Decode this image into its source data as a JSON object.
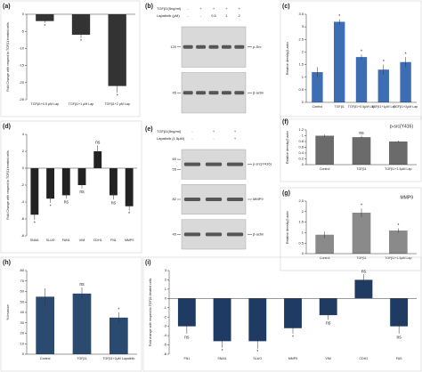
{
  "chart_data": [
    {
      "type": "bar",
      "label": "(a)",
      "y_label": "Fold Change with respect to TGFβ1 treated cells",
      "categories": [
        "TGFβ1+0.5 μM Lap",
        "TGFβ1+1 μM Lap",
        "TGFβ1+2 μM Lap"
      ],
      "values": [
        -2,
        -6,
        -21
      ],
      "errors": [
        0.5,
        1,
        2
      ],
      "annotations": [
        "*",
        "*",
        "*"
      ],
      "color": "#333333",
      "ylim": [
        -25,
        0
      ],
      "yticks": [
        0,
        -5,
        -10,
        -15,
        -20,
        -25
      ]
    },
    {
      "type": "blot",
      "label": "(b)",
      "rows": [
        {
          "name": "TGFβ1(5ng/ml)",
          "marks": [
            "-",
            "+",
            "+",
            "+",
            "+"
          ]
        },
        {
          "name": "Lapatinib (μM)",
          "marks": [
            "-",
            "-",
            "0.5",
            "1",
            "2"
          ]
        }
      ],
      "bands": [
        {
          "sizes": [
            "120"
          ],
          "name": "p-Src"
        },
        {
          "sizes": [
            "45"
          ],
          "name": "β-actin"
        }
      ]
    },
    {
      "type": "bar",
      "label": "(c)",
      "y_label": "Relative density/β-actin",
      "categories": [
        "Control",
        "TGFβ1",
        "TGFβ1+0.5μM Lap",
        "TGFβ1+1μM Lap",
        "TGFβ1+2μM Lap"
      ],
      "values": [
        1.2,
        3.2,
        1.8,
        1.3,
        1.6
      ],
      "errors": [
        0.2,
        0.1,
        0.1,
        0.2,
        0.2
      ],
      "annotations": [
        null,
        "*",
        "*",
        "*",
        "*"
      ],
      "color": "#3d6eb4",
      "ylim": [
        0,
        3.5
      ],
      "yticks": [
        0,
        0.5,
        1,
        1.5,
        2,
        2.5,
        3,
        3.5
      ]
    },
    {
      "type": "bar",
      "label": "(d)",
      "y_label": "Fold Change with respect to TGFβ1 treated cells",
      "categories": [
        "SNAIL",
        "SLUG",
        "FAN1",
        "VIM",
        "CDH1",
        "FN1",
        "MMP9"
      ],
      "values": [
        -5.5,
        -3.6,
        -3.2,
        -2,
        2,
        -3.2,
        -4.5
      ],
      "errors": [
        0.6,
        0.5,
        0.4,
        0.4,
        0.7,
        0.5,
        0.5
      ],
      "annotations": [
        "*",
        "*",
        "ns",
        "ns",
        "ns",
        "ns",
        "*"
      ],
      "color": "#222222",
      "ylim": [
        -8,
        4
      ],
      "yticks": [
        4,
        2,
        0,
        -2,
        -4,
        -6,
        -8
      ]
    },
    {
      "type": "blot",
      "label": "(e)",
      "rows": [
        {
          "name": "TGFβ1(5ng/ml)",
          "marks": [
            "-",
            "+",
            "+"
          ]
        },
        {
          "name": "Lapatinib (1.5μM)",
          "marks": [
            "-",
            "-",
            "+"
          ]
        }
      ],
      "bands": [
        {
          "sizes": [
            "60",
            "55"
          ],
          "name": "p-src(Y416)"
        },
        {
          "sizes": [
            "82"
          ],
          "name": "MMP9"
        },
        {
          "sizes": [
            "45"
          ],
          "name": "β-actin"
        }
      ]
    },
    {
      "type": "bar",
      "label": "(f)",
      "title": "p-src(Y416)",
      "y_label": "Relative density/β actin",
      "categories": [
        "Control",
        "TGFβ1",
        "TGFβ1+1.5μM Lap"
      ],
      "values": [
        1.0,
        0.95,
        0.8
      ],
      "errors": [
        0.04,
        0.05,
        0.03
      ],
      "annotations": [
        null,
        "ns",
        null
      ],
      "color": "#6b6b6b",
      "ylim": [
        0,
        1.2
      ],
      "yticks": [
        0,
        0.2,
        0.4,
        0.6,
        0.8,
        1,
        1.2
      ]
    },
    {
      "type": "bar",
      "label": "(g)",
      "title": "MMP9",
      "y_label": "Relative density/β actin",
      "categories": [
        "Control",
        "TGFβ1",
        "TGFβ1+1.5μM Lap"
      ],
      "values": [
        0.9,
        1.95,
        1.1
      ],
      "errors": [
        0.15,
        0.2,
        0.1
      ],
      "annotations": [
        null,
        "*",
        "*"
      ],
      "color": "#8a8a8a",
      "ylim": [
        0,
        2.5
      ],
      "yticks": [
        0,
        0.5,
        1,
        1.5,
        2,
        2.5
      ]
    },
    {
      "type": "bar",
      "label": "(h)",
      "y_label": "% Invasion",
      "categories": [
        "Control",
        "TGFβ1",
        "TGFβ1+2μM Lapatinib"
      ],
      "values": [
        55,
        58,
        35
      ],
      "errors": [
        8,
        6,
        5
      ],
      "annotations": [
        null,
        "ns",
        "*"
      ],
      "color": "#2b4a6f",
      "ylim": [
        0,
        80
      ],
      "yticks": [
        0,
        10,
        20,
        30,
        40,
        50,
        60,
        70,
        80
      ]
    },
    {
      "type": "bar",
      "label": "(i)",
      "y_label": "Fold change with respect to TGFβ1 treated cells",
      "categories": [
        "FN1",
        "SNAIL",
        "SLUG",
        "MMP9",
        "VIM",
        "CDH1",
        "FAS"
      ],
      "values": [
        -3,
        -4.6,
        -4.6,
        -3.2,
        -1.8,
        2,
        -3
      ],
      "errors": [
        0.8,
        0.7,
        0.8,
        0.6,
        0.5,
        0.6,
        0.8
      ],
      "annotations": [
        "ns",
        "*",
        "*",
        "*",
        "ns",
        "ns",
        "ns"
      ],
      "color": "#1f3b63",
      "ylim": [
        -6,
        3
      ],
      "yticks": [
        3,
        2,
        1,
        0,
        -1,
        -2,
        -3,
        -4,
        -5,
        -6
      ]
    }
  ]
}
